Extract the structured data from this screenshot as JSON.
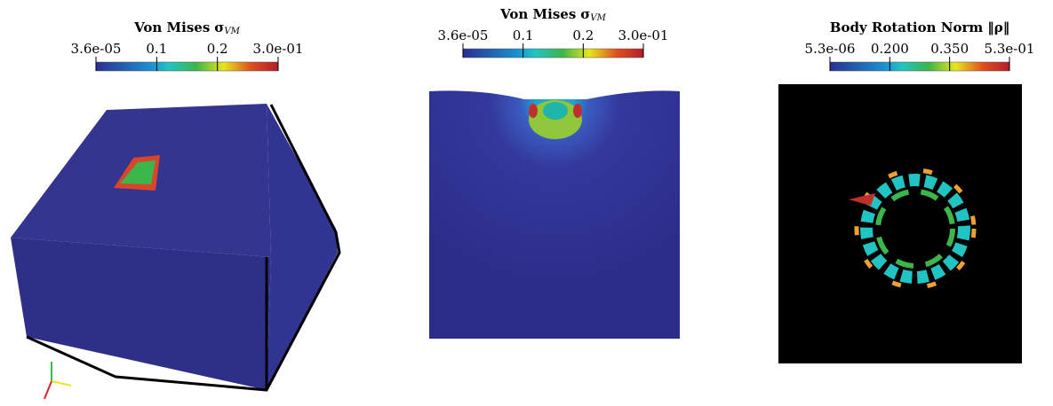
{
  "panels": [
    {
      "colorbar": {
        "title": "Von Mises",
        "symbol": "σ",
        "subscript": "VM",
        "ticks": [
          "3.6e-05",
          "0.1",
          "0.2",
          "3.0e-01"
        ]
      }
    },
    {
      "colorbar": {
        "title": "Von Mises",
        "symbol": "σ",
        "subscript": "VM",
        "ticks": [
          "3.6e-05",
          "0.1",
          "0.2",
          "3.0e-01"
        ]
      }
    },
    {
      "colorbar": {
        "title": "Body Rotation Norm",
        "symbol": "‖ρ‖",
        "ticks": [
          "5.3e-06",
          "0.200",
          "0.350",
          "5.3e-01"
        ]
      }
    }
  ]
}
